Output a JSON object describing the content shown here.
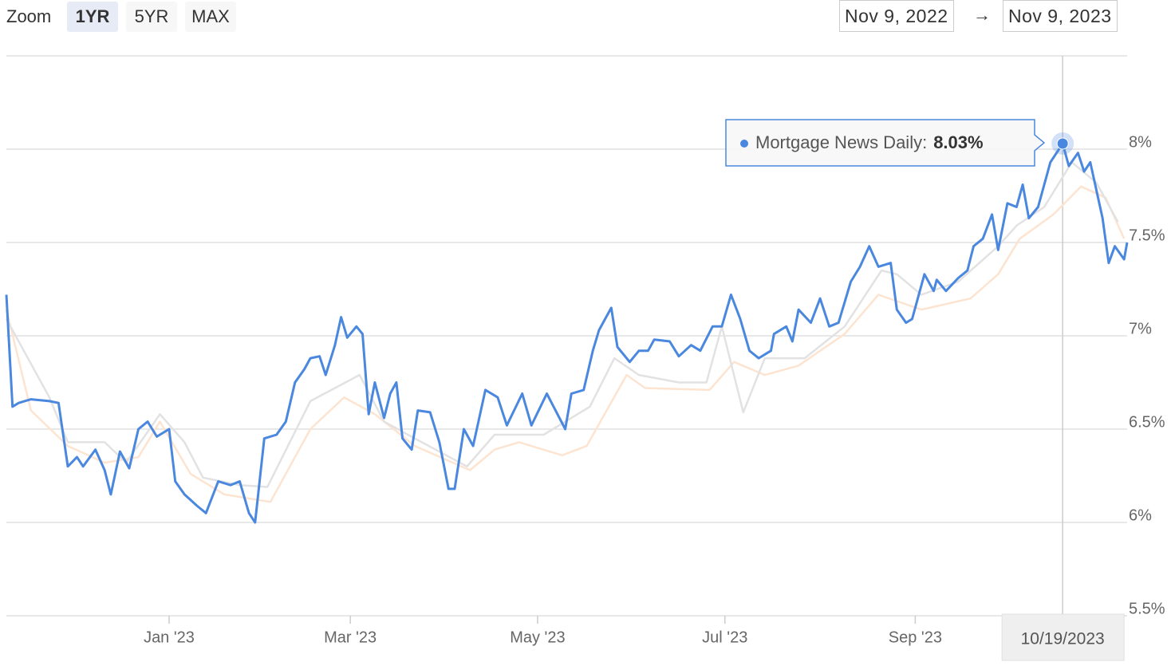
{
  "controls": {
    "zoom_label": "Zoom",
    "buttons": [
      "1YR",
      "5YR",
      "MAX"
    ],
    "active": 0,
    "range": {
      "from": "Nov 9, 2022",
      "arrow": "→",
      "to": "Nov 9, 2023"
    }
  },
  "chart_data": {
    "type": "line",
    "x": [
      "11/09/2022",
      "11/11/2022",
      "11/13/2022",
      "11/17/2022",
      "11/23/2022",
      "11/26/2022",
      "11/29/2022",
      "12/02/2022",
      "12/04/2022",
      "12/08/2022",
      "12/11/2022",
      "12/13/2022",
      "12/16/2022",
      "12/19/2022",
      "12/22/2022",
      "12/25/2022",
      "12/28/2022",
      "01/01/2023",
      "01/03/2023",
      "01/06/2023",
      "01/10/2023",
      "01/13/2023",
      "01/17/2023",
      "01/21/2023",
      "01/24/2023",
      "01/27/2023",
      "01/29/2023",
      "02/01/2023",
      "02/05/2023",
      "02/08/2023",
      "02/11/2023",
      "02/14/2023",
      "02/16/2023",
      "02/19/2023",
      "02/21/2023",
      "02/24/2023",
      "02/26/2023",
      "02/28/2023",
      "03/03/2023",
      "03/05/2023",
      "03/07/2023",
      "03/09/2023",
      "03/12/2023",
      "03/14/2023",
      "03/16/2023",
      "03/18/2023",
      "03/21/2023",
      "03/23/2023",
      "03/27/2023",
      "03/30/2023",
      "04/02/2023",
      "04/04/2023",
      "04/07/2023",
      "04/10/2023",
      "04/14/2023",
      "04/18/2023",
      "04/21/2023",
      "04/26/2023",
      "04/29/2023",
      "05/04/2023",
      "05/10/2023",
      "05/12/2023",
      "05/16/2023",
      "05/19/2023",
      "05/21/2023",
      "05/25/2023",
      "05/27/2023",
      "05/31/2023",
      "06/03/2023",
      "06/06/2023",
      "06/08/2023",
      "06/13/2023",
      "06/16/2023",
      "06/20/2023",
      "06/23/2023",
      "06/27/2023",
      "06/30/2023",
      "07/03/2023",
      "07/06/2023",
      "07/09/2023",
      "07/12/2023",
      "07/16/2023",
      "07/17/2023",
      "07/21/2023",
      "07/23/2023",
      "07/25/2023",
      "07/29/2023",
      "08/01/2023",
      "08/04/2023",
      "08/07/2023",
      "08/11/2023",
      "08/14/2023",
      "08/17/2023",
      "08/20/2023",
      "08/24/2023",
      "08/26/2023",
      "08/29/2023",
      "08/31/2023",
      "09/04/2023",
      "09/07/2023",
      "09/08/2023",
      "09/11/2023",
      "09/15/2023",
      "09/18/2023",
      "09/20/2023",
      "09/23/2023",
      "09/26/2023",
      "09/28/2023",
      "10/01/2023",
      "10/04/2023",
      "10/06/2023",
      "10/08/2023",
      "10/11/2023",
      "10/15/2023",
      "10/19/2023",
      "10/21/2023",
      "10/24/2023",
      "10/26/2023",
      "10/28/2023",
      "11/01/2023",
      "11/03/2023",
      "11/05/2023",
      "11/08/2023",
      "11/09/2023"
    ],
    "series": [
      {
        "name": "Mortgage News Daily",
        "color": "#4a87de",
        "values": [
          7.22,
          6.62,
          6.64,
          6.66,
          6.65,
          6.64,
          6.3,
          6.35,
          6.3,
          6.39,
          6.28,
          6.15,
          6.38,
          6.29,
          6.5,
          6.54,
          6.46,
          6.5,
          6.22,
          6.15,
          6.09,
          6.05,
          6.22,
          6.2,
          6.22,
          6.05,
          6.0,
          6.45,
          6.47,
          6.54,
          6.75,
          6.82,
          6.88,
          6.89,
          6.79,
          6.95,
          7.1,
          6.99,
          7.05,
          7.01,
          6.58,
          6.75,
          6.56,
          6.69,
          6.75,
          6.45,
          6.39,
          6.6,
          6.59,
          6.43,
          6.18,
          6.18,
          6.5,
          6.41,
          6.71,
          6.67,
          6.52,
          6.69,
          6.52,
          6.69,
          6.5,
          6.69,
          6.71,
          6.92,
          7.03,
          7.15,
          6.94,
          6.86,
          6.92,
          6.92,
          6.98,
          6.97,
          6.89,
          6.95,
          6.92,
          7.05,
          7.05,
          7.22,
          7.09,
          6.92,
          6.88,
          6.92,
          7.01,
          7.05,
          6.97,
          7.14,
          7.07,
          7.2,
          7.05,
          7.07,
          7.29,
          7.37,
          7.48,
          7.37,
          7.39,
          7.14,
          7.07,
          7.09,
          7.33,
          7.24,
          7.3,
          7.24,
          7.31,
          7.35,
          7.48,
          7.52,
          7.65,
          7.46,
          7.71,
          7.69,
          7.81,
          7.63,
          7.69,
          7.93,
          8.03,
          7.91,
          7.98,
          7.88,
          7.93,
          7.63,
          7.39,
          7.48,
          7.41,
          7.5
        ]
      },
      {
        "color": "#e2e2e2",
        "x": [
          "11/09/2022",
          "11/23/2022",
          "11/29/2022",
          "12/11/2022",
          "12/18/2022",
          "12/29/2022",
          "01/06/2023",
          "01/12/2023",
          "01/24/2023",
          "02/02/2023",
          "02/16/2023",
          "03/04/2023",
          "03/12/2023",
          "03/22/2023",
          "04/08/2023",
          "04/17/2023",
          "05/03/2023",
          "05/18/2023",
          "05/26/2023",
          "06/03/2023",
          "06/16/2023",
          "06/25/2023",
          "06/30/2023",
          "07/07/2023",
          "07/14/2023",
          "07/27/2023",
          "08/09/2023",
          "08/21/2023",
          "08/26/2023",
          "09/03/2023",
          "09/15/2023",
          "09/28/2023",
          "10/04/2023",
          "10/13/2023",
          "10/22/2023",
          "10/30/2023",
          "11/06/2023"
        ],
        "values": [
          7.09,
          6.67,
          6.43,
          6.43,
          6.32,
          6.58,
          6.43,
          6.24,
          6.2,
          6.19,
          6.65,
          6.79,
          6.54,
          6.45,
          6.3,
          6.47,
          6.47,
          6.62,
          6.88,
          6.79,
          6.75,
          6.75,
          7.05,
          6.59,
          6.88,
          6.88,
          7.05,
          7.35,
          7.33,
          7.22,
          7.29,
          7.48,
          7.59,
          7.69,
          7.93,
          7.82,
          7.61
        ]
      },
      {
        "color": "#fde4d0",
        "x": [
          "11/09/2022",
          "11/17/2022",
          "11/29/2022",
          "12/11/2022",
          "12/22/2022",
          "12/29/2022",
          "01/08/2023",
          "01/19/2023",
          "02/03/2023",
          "02/16/2023",
          "02/27/2023",
          "03/09/2023",
          "03/22/2023",
          "04/09/2023",
          "04/17/2023",
          "04/25/2023",
          "05/09/2023",
          "05/17/2023",
          "05/30/2023",
          "06/05/2023",
          "06/26/2023",
          "07/04/2023",
          "07/14/2023",
          "07/25/2023",
          "08/09/2023",
          "08/20/2023",
          "09/03/2023",
          "09/19/2023",
          "09/28/2023",
          "10/05/2023",
          "10/16/2023",
          "10/25/2023",
          "11/02/2023",
          "11/08/2023"
        ],
        "values": [
          7.14,
          6.6,
          6.41,
          6.32,
          6.35,
          6.54,
          6.26,
          6.15,
          6.11,
          6.5,
          6.67,
          6.58,
          6.41,
          6.28,
          6.39,
          6.43,
          6.36,
          6.41,
          6.79,
          6.72,
          6.71,
          6.86,
          6.79,
          6.84,
          7.01,
          7.22,
          7.14,
          7.2,
          7.33,
          7.52,
          7.65,
          7.8,
          7.74,
          7.52
        ]
      }
    ],
    "xlim": [
      "11/09/2022",
      "11/09/2023"
    ],
    "xticks": [
      {
        "value": "01/01/2023",
        "label": "Jan '23"
      },
      {
        "value": "03/01/2023",
        "label": "Mar '23"
      },
      {
        "value": "05/01/2023",
        "label": "May '23"
      },
      {
        "value": "07/01/2023",
        "label": "Jul '23"
      },
      {
        "value": "09/01/2023",
        "label": "Sep '23"
      }
    ],
    "ylim": [
      5.5,
      8.5
    ],
    "yticks": [
      {
        "value": 5.5,
        "label": "5.5%"
      },
      {
        "value": 6,
        "label": "6%"
      },
      {
        "value": 6.5,
        "label": "6.5%"
      },
      {
        "value": 7,
        "label": "7%"
      },
      {
        "value": 7.5,
        "label": "7.5%"
      },
      {
        "value": 8,
        "label": "8%"
      }
    ],
    "grid": true,
    "tooltip": {
      "x": "10/19/2023",
      "label": "Mortgage News Daily:",
      "value": 8.03,
      "value_label": "8.03%"
    }
  }
}
